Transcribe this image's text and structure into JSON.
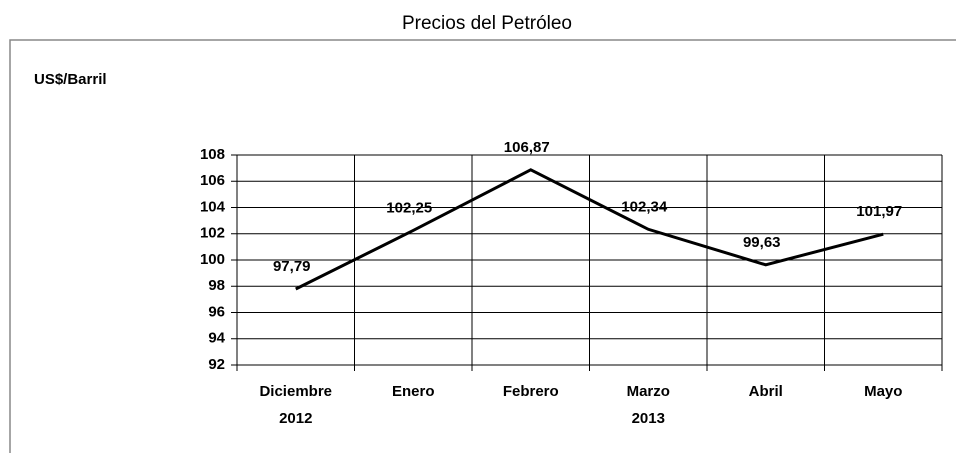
{
  "chart_data": {
    "type": "line",
    "title": "Precios del Petróleo",
    "ylabel": "US$/Barril",
    "categories": [
      "Diciembre",
      "Enero",
      "Febrero",
      "Marzo",
      "Abril",
      "Mayo"
    ],
    "category_groups": [
      "2012",
      null,
      null,
      "2013",
      null,
      null
    ],
    "values": [
      97.79,
      102.25,
      106.87,
      102.34,
      99.63,
      101.97
    ],
    "value_labels": [
      "97,79",
      "102,25",
      "106,87",
      "102,34",
      "99,63",
      "101,97"
    ],
    "color": "#000000",
    "ylim": [
      92,
      108
    ],
    "yticks": [
      92,
      94,
      96,
      98,
      100,
      102,
      104,
      106,
      108
    ],
    "grid": true
  }
}
